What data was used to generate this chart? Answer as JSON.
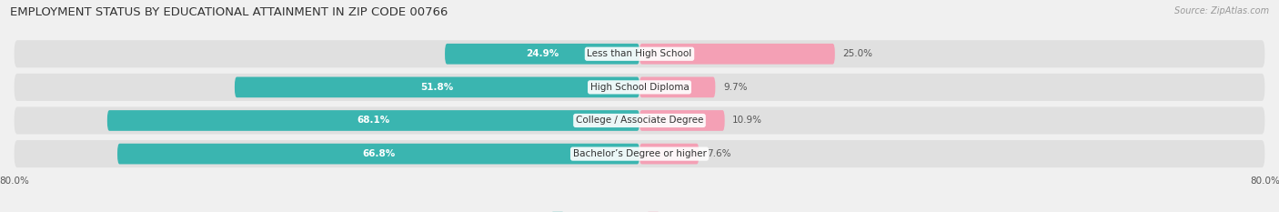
{
  "title": "EMPLOYMENT STATUS BY EDUCATIONAL ATTAINMENT IN ZIP CODE 00766",
  "source": "Source: ZipAtlas.com",
  "categories": [
    "Less than High School",
    "High School Diploma",
    "College / Associate Degree",
    "Bachelor’s Degree or higher"
  ],
  "labor_force": [
    24.9,
    51.8,
    68.1,
    66.8
  ],
  "unemployed": [
    25.0,
    9.7,
    10.9,
    7.6
  ],
  "labor_force_color": "#3ab5b0",
  "unemployed_color": "#f4a0b5",
  "background_color": "#f0f0f0",
  "bar_bg_color": "#e0e0e0",
  "axis_min": -80.0,
  "axis_max": 80.0,
  "x_tick_left": "80.0%",
  "x_tick_right": "80.0%",
  "title_fontsize": 9.5,
  "bar_label_fontsize": 7.5,
  "cat_label_fontsize": 7.5,
  "legend_fontsize": 8,
  "source_fontsize": 7
}
